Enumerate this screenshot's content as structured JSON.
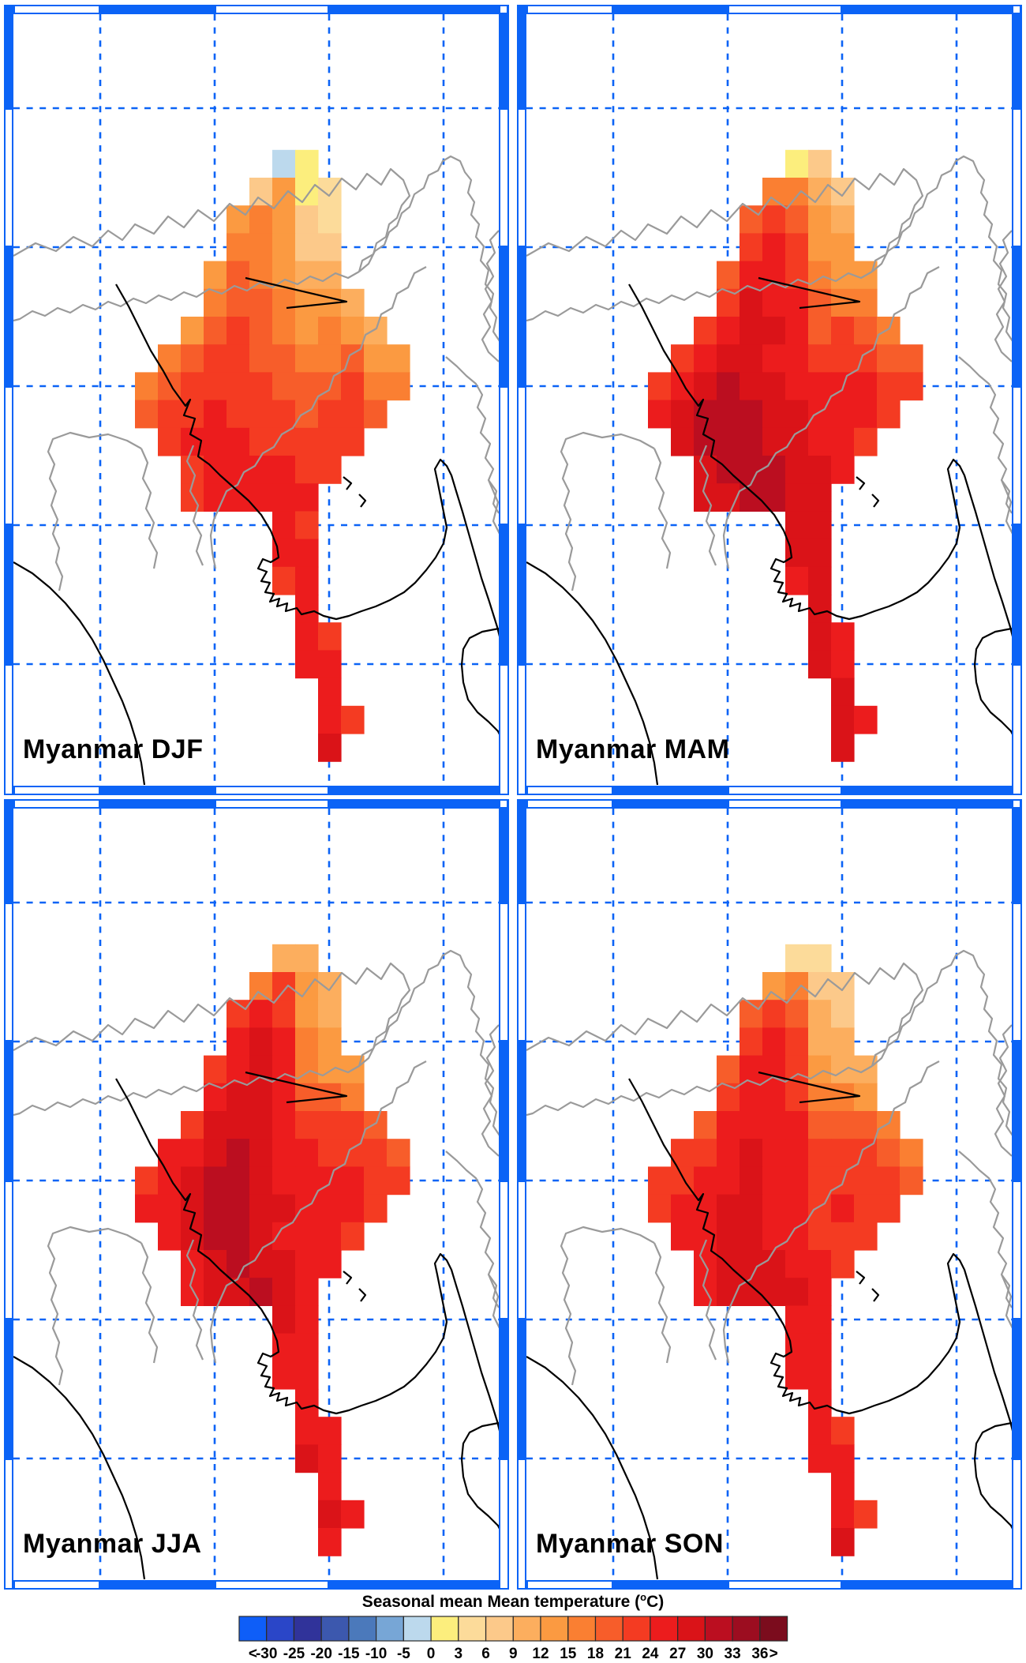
{
  "figure": {
    "frame_color": "#0b63f6",
    "grid_color": "#0b63f6",
    "border_gray": "#9a9a9a",
    "coast_black": "#000000",
    "panels": [
      {
        "id": "djf",
        "season": "DJF",
        "title": "Myanmar DJF"
      },
      {
        "id": "mam",
        "season": "MAM",
        "title": "Myanmar MAM"
      },
      {
        "id": "jja",
        "season": "JJA",
        "title": "Myanmar JJA"
      },
      {
        "id": "son",
        "season": "SON",
        "title": "Myanmar SON"
      }
    ],
    "colorbar": {
      "title": "Seasonal mean Mean temperature (°C)",
      "tick_labels": [
        "<",
        "-30",
        "-25",
        "-20",
        "-15",
        "-10",
        "-5",
        "0",
        "3",
        "6",
        "9",
        "12",
        "15",
        "18",
        "21",
        "24",
        "27",
        "30",
        "33",
        "36",
        ">"
      ],
      "cell_border_color": "#2b2b2b"
    }
  },
  "chart_data": {
    "type": "heatmap",
    "subtype": "gridded-temperature-maps",
    "region": "Myanmar",
    "variable": "Seasonal mean Mean temperature (°C)",
    "seasons": [
      "DJF",
      "MAM",
      "JJA",
      "SON"
    ],
    "bins": {
      "edges": [
        -30,
        -25,
        -20,
        -15,
        -10,
        -5,
        0,
        3,
        6,
        9,
        12,
        15,
        18,
        21,
        24,
        27,
        30,
        33,
        36
      ],
      "open_low": true,
      "open_high": true
    },
    "bin_colors": [
      "#0e5ef8",
      "#2a46c8",
      "#30339a",
      "#3c58ae",
      "#4b79bb",
      "#77a6d6",
      "#bcd9ed",
      "#fcee7d",
      "#fcdb9a",
      "#fcc98a",
      "#fcae5e",
      "#fb9a41",
      "#fa7f32",
      "#f75d2a",
      "#f43b22",
      "#ec1c1d",
      "#da1318",
      "#bb0e20",
      "#9c0d20",
      "#7b0c1d"
    ],
    "legend_position": "bottom-center",
    "grid_note": "cells indexed by row m (north to south) and column c (west to east); value = 1-based bin index",
    "grids": {
      "DJF": {
        "1": {
          "7": 7,
          "8": 8
        },
        "2": {
          "6": 10,
          "7": 12,
          "8": 8,
          "9": 9
        },
        "3": {
          "5": 12,
          "6": 13,
          "7": 12,
          "8": 10,
          "9": 9
        },
        "4": {
          "5": 13,
          "6": 13,
          "7": 12,
          "8": 10,
          "9": 10
        },
        "5": {
          "4": 12,
          "5": 14,
          "6": 13,
          "7": 12,
          "8": 11,
          "9": 11
        },
        "6": {
          "4": 13,
          "5": 14,
          "6": 14,
          "7": 13,
          "8": 12,
          "9": 12,
          "10": 11
        },
        "7": {
          "3": 12,
          "4": 14,
          "5": 15,
          "6": 14,
          "7": 13,
          "8": 12,
          "9": 13,
          "10": 12,
          "11": 11
        },
        "8": {
          "2": 13,
          "3": 14,
          "4": 15,
          "5": 15,
          "6": 14,
          "7": 14,
          "8": 13,
          "9": 13,
          "10": 14,
          "11": 12,
          "12": 12
        },
        "9": {
          "1": 13,
          "2": 14,
          "3": 15,
          "4": 15,
          "5": 15,
          "6": 15,
          "7": 14,
          "8": 14,
          "9": 14,
          "10": 15,
          "11": 13,
          "12": 13
        },
        "10": {
          "1": 14,
          "2": 15,
          "3": 15,
          "4": 16,
          "5": 15,
          "6": 15,
          "7": 15,
          "8": 14,
          "9": 15,
          "10": 15,
          "11": 14
        },
        "11": {
          "2": 15,
          "3": 16,
          "4": 16,
          "5": 16,
          "6": 15,
          "7": 15,
          "8": 15,
          "9": 15,
          "10": 15
        },
        "12": {
          "3": 15,
          "4": 16,
          "5": 16,
          "6": 16,
          "7": 16,
          "8": 15,
          "9": 15
        },
        "13": {
          "3": 15,
          "4": 16,
          "5": 16,
          "6": 16,
          "7": 16,
          "8": 16
        },
        "14": {
          "7": 16,
          "8": 15
        },
        "15": {
          "7": 16,
          "8": 16
        },
        "16": {
          "7": 15,
          "8": 16
        },
        "17": {
          "8": 16
        },
        "18": {
          "8": 16,
          "9": 15
        },
        "19": {
          "8": 16,
          "9": 16
        },
        "20": {
          "9": 16
        },
        "21": {
          "9": 16,
          "10": 15
        },
        "22": {
          "9": 17
        }
      },
      "MAM": {
        "1": {
          "7": 8,
          "8": 10
        },
        "2": {
          "6": 13,
          "7": 13,
          "8": 11,
          "9": 10
        },
        "3": {
          "5": 14,
          "6": 15,
          "7": 14,
          "8": 12,
          "9": 11
        },
        "4": {
          "5": 15,
          "6": 16,
          "7": 15,
          "8": 12,
          "9": 12
        },
        "5": {
          "4": 14,
          "5": 16,
          "6": 16,
          "7": 15,
          "8": 13,
          "9": 12,
          "10": 12
        },
        "6": {
          "4": 15,
          "5": 17,
          "6": 16,
          "7": 16,
          "8": 14,
          "9": 13,
          "10": 13
        },
        "7": {
          "3": 15,
          "4": 16,
          "5": 17,
          "6": 17,
          "7": 16,
          "8": 14,
          "9": 15,
          "10": 14,
          "11": 13
        },
        "8": {
          "2": 15,
          "3": 16,
          "4": 17,
          "5": 17,
          "6": 16,
          "7": 16,
          "8": 15,
          "9": 15,
          "10": 15,
          "11": 14,
          "12": 14
        },
        "9": {
          "1": 15,
          "2": 16,
          "3": 17,
          "4": 18,
          "5": 17,
          "6": 17,
          "7": 16,
          "8": 16,
          "9": 16,
          "10": 16,
          "11": 15,
          "12": 15
        },
        "10": {
          "1": 16,
          "2": 17,
          "3": 18,
          "4": 18,
          "5": 18,
          "6": 17,
          "7": 17,
          "8": 16,
          "9": 16,
          "10": 16,
          "11": 15
        },
        "11": {
          "2": 17,
          "3": 18,
          "4": 18,
          "5": 18,
          "6": 17,
          "7": 17,
          "8": 16,
          "9": 16,
          "10": 15
        },
        "12": {
          "3": 17,
          "4": 18,
          "5": 18,
          "6": 18,
          "7": 17,
          "8": 17,
          "9": 16
        },
        "13": {
          "3": 17,
          "4": 17,
          "5": 18,
          "6": 18,
          "7": 17,
          "8": 17
        },
        "14": {
          "7": 17,
          "8": 17
        },
        "15": {
          "7": 17,
          "8": 17
        },
        "16": {
          "7": 16,
          "8": 17
        },
        "17": {
          "8": 17
        },
        "18": {
          "8": 17,
          "9": 16
        },
        "19": {
          "8": 17,
          "9": 16
        },
        "20": {
          "9": 17
        },
        "21": {
          "9": 17,
          "10": 16
        },
        "22": {
          "9": 17
        }
      },
      "JJA": {
        "1": {
          "7": 11,
          "8": 11
        },
        "2": {
          "6": 13,
          "7": 15,
          "8": 12,
          "9": 11
        },
        "3": {
          "5": 15,
          "6": 16,
          "7": 15,
          "8": 12,
          "9": 11
        },
        "4": {
          "5": 16,
          "6": 17,
          "7": 16,
          "8": 13,
          "9": 12
        },
        "5": {
          "4": 15,
          "5": 16,
          "6": 17,
          "7": 16,
          "8": 13,
          "9": 12,
          "10": 12
        },
        "6": {
          "4": 16,
          "5": 17,
          "6": 17,
          "7": 16,
          "8": 14,
          "9": 14,
          "10": 13
        },
        "7": {
          "3": 15,
          "4": 17,
          "5": 17,
          "6": 17,
          "7": 16,
          "8": 15,
          "9": 15,
          "10": 15,
          "11": 14
        },
        "8": {
          "2": 16,
          "3": 16,
          "4": 17,
          "5": 18,
          "6": 17,
          "7": 16,
          "8": 16,
          "9": 15,
          "10": 15,
          "11": 15,
          "12": 14
        },
        "9": {
          "1": 15,
          "2": 16,
          "3": 17,
          "4": 18,
          "5": 18,
          "6": 17,
          "7": 16,
          "8": 16,
          "9": 16,
          "10": 16,
          "11": 15,
          "12": 15
        },
        "10": {
          "1": 16,
          "2": 16,
          "3": 17,
          "4": 18,
          "5": 18,
          "6": 17,
          "7": 17,
          "8": 16,
          "9": 16,
          "10": 16,
          "11": 15
        },
        "11": {
          "2": 16,
          "3": 17,
          "4": 18,
          "5": 18,
          "6": 17,
          "7": 16,
          "8": 16,
          "9": 16,
          "10": 15
        },
        "12": {
          "3": 16,
          "4": 17,
          "5": 18,
          "6": 17,
          "7": 17,
          "8": 16,
          "9": 16
        },
        "13": {
          "3": 16,
          "4": 17,
          "5": 17,
          "6": 18,
          "7": 17,
          "8": 16
        },
        "14": {
          "7": 17,
          "8": 16
        },
        "15": {
          "7": 16,
          "8": 16
        },
        "16": {
          "7": 16,
          "8": 16
        },
        "17": {
          "8": 16
        },
        "18": {
          "8": 16,
          "9": 16
        },
        "19": {
          "8": 17,
          "9": 16
        },
        "20": {
          "9": 16
        },
        "21": {
          "9": 17,
          "10": 16
        },
        "22": {
          "9": 16
        }
      },
      "SON": {
        "1": {
          "7": 9,
          "8": 9
        },
        "2": {
          "6": 12,
          "7": 13,
          "8": 10,
          "9": 10
        },
        "3": {
          "5": 14,
          "6": 15,
          "7": 14,
          "8": 11,
          "9": 10
        },
        "4": {
          "5": 15,
          "6": 16,
          "7": 15,
          "8": 11,
          "9": 11
        },
        "5": {
          "4": 14,
          "5": 16,
          "6": 16,
          "7": 15,
          "8": 12,
          "9": 11,
          "10": 11
        },
        "6": {
          "4": 15,
          "5": 16,
          "6": 16,
          "7": 15,
          "8": 13,
          "9": 13,
          "10": 12
        },
        "7": {
          "3": 14,
          "4": 16,
          "5": 16,
          "6": 16,
          "7": 16,
          "8": 14,
          "9": 14,
          "10": 14,
          "11": 13
        },
        "8": {
          "2": 15,
          "3": 15,
          "4": 16,
          "5": 17,
          "6": 16,
          "7": 16,
          "8": 15,
          "9": 15,
          "10": 15,
          "11": 14,
          "12": 13
        },
        "9": {
          "1": 15,
          "2": 15,
          "3": 16,
          "4": 16,
          "5": 17,
          "6": 16,
          "7": 16,
          "8": 15,
          "9": 15,
          "10": 15,
          "11": 15,
          "12": 14
        },
        "10": {
          "1": 15,
          "2": 16,
          "3": 16,
          "4": 17,
          "5": 17,
          "6": 16,
          "7": 16,
          "8": 15,
          "9": 16,
          "10": 15,
          "11": 15
        },
        "11": {
          "2": 16,
          "3": 16,
          "4": 17,
          "5": 17,
          "6": 16,
          "7": 16,
          "8": 15,
          "9": 15,
          "10": 15
        },
        "12": {
          "3": 16,
          "4": 17,
          "5": 17,
          "6": 17,
          "7": 16,
          "8": 16,
          "9": 15
        },
        "13": {
          "3": 16,
          "4": 17,
          "5": 17,
          "6": 17,
          "7": 17,
          "8": 16
        },
        "14": {
          "7": 16,
          "8": 16
        },
        "15": {
          "7": 16,
          "8": 16
        },
        "16": {
          "7": 16,
          "8": 16
        },
        "17": {
          "8": 16
        },
        "18": {
          "8": 16,
          "9": 15
        },
        "19": {
          "8": 16,
          "9": 16
        },
        "20": {
          "9": 16
        },
        "21": {
          "9": 16,
          "10": 15
        },
        "22": {
          "9": 17
        }
      }
    }
  }
}
